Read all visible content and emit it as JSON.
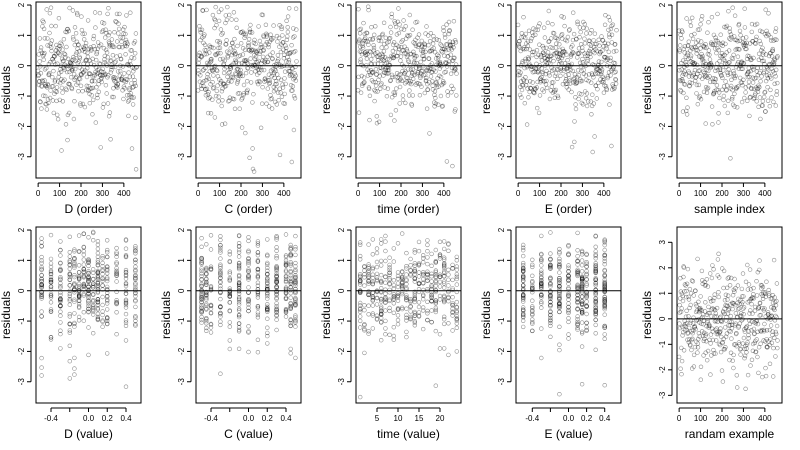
{
  "chart_data": [
    {
      "id": "p1",
      "type": "scatter",
      "xlabel": "D (order)",
      "ylabel": "residuals",
      "xlim": [
        -10,
        480
      ],
      "ylim": [
        -3.7,
        2.1
      ],
      "xticks": [
        0,
        100,
        200,
        300,
        400
      ],
      "xtick_labels": [
        "0",
        "100",
        "200",
        "300",
        "400"
      ],
      "yticks": [
        -3,
        -2,
        -1,
        0,
        1,
        2
      ],
      "ytick_labels": [
        "-3",
        "-2",
        "-1",
        "0",
        "1",
        "2"
      ],
      "hline": 0,
      "grid": false,
      "n_points": 460,
      "x_kind": "order",
      "y_kind": "standard",
      "seed": 11
    },
    {
      "id": "p2",
      "type": "scatter",
      "xlabel": "C (order)",
      "ylabel": "residuals",
      "xlim": [
        -10,
        480
      ],
      "ylim": [
        -3.7,
        2.1
      ],
      "xticks": [
        0,
        100,
        200,
        300,
        400
      ],
      "xtick_labels": [
        "0",
        "100",
        "200",
        "300",
        "400"
      ],
      "yticks": [
        -3,
        -2,
        -1,
        0,
        1,
        2
      ],
      "ytick_labels": [
        "-3",
        "-2",
        "-1",
        "0",
        "1",
        "2"
      ],
      "hline": 0,
      "grid": false,
      "n_points": 460,
      "x_kind": "order",
      "y_kind": "standard",
      "seed": 23
    },
    {
      "id": "p3",
      "type": "scatter",
      "xlabel": "time (order)",
      "ylabel": "residuals",
      "xlim": [
        -10,
        480
      ],
      "ylim": [
        -3.7,
        2.1
      ],
      "xticks": [
        0,
        100,
        200,
        300,
        400
      ],
      "xtick_labels": [
        "0",
        "100",
        "200",
        "300",
        "400"
      ],
      "yticks": [
        -3,
        -2,
        -1,
        0,
        1,
        2
      ],
      "ytick_labels": [
        "-3",
        "-2",
        "-1",
        "0",
        "1",
        "2"
      ],
      "hline": 0,
      "grid": false,
      "n_points": 460,
      "x_kind": "order",
      "y_kind": "standard",
      "seed": 37
    },
    {
      "id": "p4",
      "type": "scatter",
      "xlabel": "E (order)",
      "ylabel": "residuals",
      "xlim": [
        -10,
        480
      ],
      "ylim": [
        -3.7,
        2.1
      ],
      "xticks": [
        0,
        100,
        200,
        300,
        400
      ],
      "xtick_labels": [
        "0",
        "100",
        "200",
        "300",
        "400"
      ],
      "yticks": [
        -3,
        -2,
        -1,
        0,
        1,
        2
      ],
      "ytick_labels": [
        "-3",
        "-2",
        "-1",
        "0",
        "1",
        "2"
      ],
      "hline": 0,
      "grid": false,
      "n_points": 460,
      "x_kind": "order",
      "y_kind": "standard",
      "seed": 41
    },
    {
      "id": "p5",
      "type": "scatter",
      "xlabel": "sample index",
      "ylabel": "residuals",
      "xlim": [
        -10,
        480
      ],
      "ylim": [
        -3.7,
        2.1
      ],
      "xticks": [
        0,
        100,
        200,
        300,
        400
      ],
      "xtick_labels": [
        "0",
        "100",
        "200",
        "300",
        "400"
      ],
      "yticks": [
        -3,
        -2,
        -1,
        0,
        1,
        2
      ],
      "ytick_labels": [
        "-3",
        "-2",
        "-1",
        "0",
        "1",
        "2"
      ],
      "hline": 0,
      "grid": false,
      "n_points": 460,
      "x_kind": "order",
      "y_kind": "standard",
      "seed": 53
    },
    {
      "id": "p6",
      "type": "scatter",
      "xlabel": "D (value)",
      "ylabel": "residuals",
      "xlim": [
        -0.56,
        0.56
      ],
      "ylim": [
        -3.7,
        2.1
      ],
      "xticks": [
        -0.4,
        -0.2,
        0,
        0.2,
        0.4
      ],
      "xtick_labels": [
        "-0.4",
        "",
        "0.0",
        "0.2",
        "0.4"
      ],
      "yticks": [
        -3,
        -2,
        -1,
        0,
        1,
        2
      ],
      "ytick_labels": [
        "-3",
        "-2",
        "-1",
        "0",
        "1",
        "2"
      ],
      "hline": 0,
      "grid": false,
      "n_points": 460,
      "x_kind": "discrete",
      "x_levels": [
        -0.5,
        -0.4,
        -0.3,
        -0.2,
        -0.15,
        -0.1,
        -0.05,
        0,
        0.05,
        0.1,
        0.15,
        0.2,
        0.3,
        0.4,
        0.5
      ],
      "y_kind": "standard",
      "seed": 67
    },
    {
      "id": "p7",
      "type": "scatter",
      "xlabel": "C (value)",
      "ylabel": "residuals",
      "xlim": [
        -0.56,
        0.56
      ],
      "ylim": [
        -3.7,
        2.1
      ],
      "xticks": [
        -0.4,
        -0.2,
        0,
        0.2,
        0.4
      ],
      "xtick_labels": [
        "-0.4",
        "",
        "0.0",
        "0.2",
        "0.4"
      ],
      "yticks": [
        -3,
        -2,
        -1,
        0,
        1,
        2
      ],
      "ytick_labels": [
        "-3",
        "-2",
        "-1",
        "0",
        "1",
        "2"
      ],
      "hline": 0,
      "grid": false,
      "n_points": 460,
      "x_kind": "discrete",
      "x_levels": [
        -0.5,
        -0.45,
        -0.4,
        -0.3,
        -0.2,
        -0.1,
        0,
        0.1,
        0.2,
        0.3,
        0.4,
        0.45,
        0.5
      ],
      "y_kind": "standard",
      "seed": 71
    },
    {
      "id": "p8",
      "type": "scatter",
      "xlabel": "time (value)",
      "ylabel": "residuals",
      "xlim": [
        0,
        25
      ],
      "ylim": [
        -3.7,
        2.1
      ],
      "xticks": [
        5,
        10,
        15,
        20
      ],
      "xtick_labels": [
        "5",
        "10",
        "15",
        "20"
      ],
      "yticks": [
        -3,
        -2,
        -1,
        0,
        1,
        2
      ],
      "ytick_labels": [
        "-3",
        "-2",
        "-1",
        "0",
        "1",
        "2"
      ],
      "hline": 0,
      "grid": false,
      "n_points": 460,
      "x_kind": "discrete",
      "x_levels": [
        1,
        2,
        3,
        4,
        5,
        6,
        7,
        8,
        9,
        10,
        11,
        12,
        13,
        14,
        15,
        16,
        17,
        18,
        19,
        20,
        21,
        22,
        23,
        24
      ],
      "y_kind": "standard",
      "seed": 83
    },
    {
      "id": "p9",
      "type": "scatter",
      "xlabel": "E (value)",
      "ylabel": "residuals",
      "xlim": [
        -0.58,
        0.58
      ],
      "ylim": [
        -3.7,
        2.1
      ],
      "xticks": [
        -0.4,
        -0.2,
        0,
        0.2,
        0.4
      ],
      "xtick_labels": [
        "-0.4",
        "",
        "0.0",
        "0.2",
        "0.4"
      ],
      "yticks": [
        -3,
        -2,
        -1,
        0,
        1,
        2
      ],
      "ytick_labels": [
        "-3",
        "-2",
        "-1",
        "0",
        "1",
        "2"
      ],
      "hline": 0,
      "grid": false,
      "n_points": 460,
      "x_kind": "discrete",
      "x_levels": [
        -0.5,
        -0.4,
        -0.3,
        -0.2,
        -0.1,
        0,
        0.1,
        0.15,
        0.2,
        0.3,
        0.4
      ],
      "y_kind": "standard",
      "seed": 97
    },
    {
      "id": "p10",
      "type": "scatter",
      "xlabel": "randam example",
      "ylabel": "residuals",
      "xlim": [
        -10,
        480
      ],
      "ylim": [
        -3.3,
        3.6
      ],
      "xticks": [
        0,
        100,
        200,
        300,
        400
      ],
      "xtick_labels": [
        "0",
        "100",
        "200",
        "300",
        "400"
      ],
      "yticks": [
        -3,
        -2,
        -1,
        0,
        1,
        2,
        3
      ],
      "ytick_labels": [
        "-3",
        "-2",
        "-1",
        "0",
        "1",
        "2",
        "3"
      ],
      "hline": 0,
      "grid": false,
      "n_points": 460,
      "x_kind": "order",
      "y_kind": "normal",
      "seed": 101
    }
  ]
}
